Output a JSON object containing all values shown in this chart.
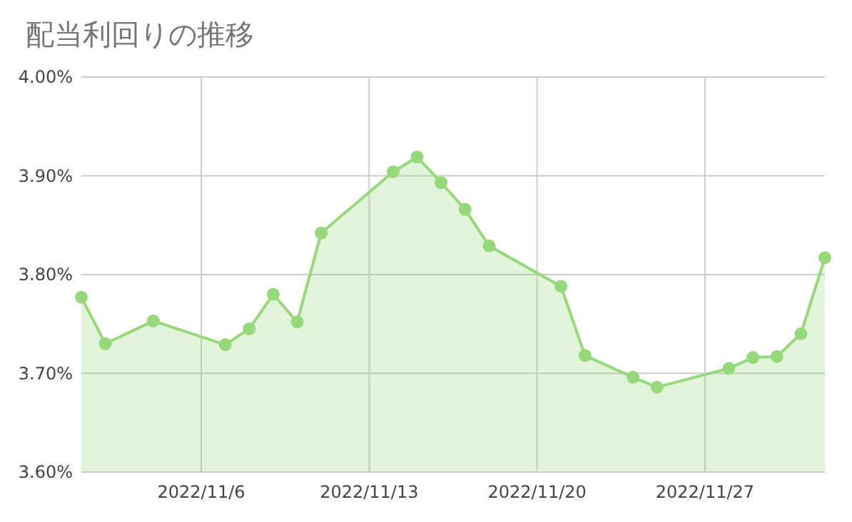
{
  "chart_data": {
    "type": "area",
    "title": "配当利回りの推移",
    "x": [
      "2022-11-01",
      "2022-11-02",
      "2022-11-04",
      "2022-11-07",
      "2022-11-08",
      "2022-11-09",
      "2022-11-10",
      "2022-11-11",
      "2022-11-14",
      "2022-11-15",
      "2022-11-16",
      "2022-11-17",
      "2022-11-18",
      "2022-11-21",
      "2022-11-22",
      "2022-11-24",
      "2022-11-25",
      "2022-11-28",
      "2022-11-29",
      "2022-11-30",
      "2022-12-01",
      "2022-12-02"
    ],
    "series": [
      {
        "color": "#96d97a",
        "values": [
          3.777,
          3.73,
          3.753,
          3.729,
          3.745,
          3.78,
          3.752,
          3.842,
          3.904,
          3.919,
          3.893,
          3.866,
          3.829,
          3.788,
          3.718,
          3.696,
          3.686,
          3.705,
          3.716,
          3.717,
          3.74,
          3.817
        ]
      }
    ],
    "xlim": [
      "2022-11-01",
      "2022-12-02"
    ],
    "xticks": [
      {
        "value": "2022-11-06",
        "label": "2022/11/6"
      },
      {
        "value": "2022-11-13",
        "label": "2022/11/13"
      },
      {
        "value": "2022-11-20",
        "label": "2022/11/20"
      },
      {
        "value": "2022-11-27",
        "label": "2022/11/27"
      }
    ],
    "ylim": [
      3.6,
      4.0
    ],
    "yticks": [
      {
        "value": 3.6,
        "label": "3.60%"
      },
      {
        "value": 3.7,
        "label": "3.70%"
      },
      {
        "value": 3.8,
        "label": "3.80%"
      },
      {
        "value": 3.9,
        "label": "3.90%"
      },
      {
        "value": 4.0,
        "label": "4.00%"
      }
    ],
    "grid": true,
    "marker": "circle",
    "line_style": "solid"
  }
}
